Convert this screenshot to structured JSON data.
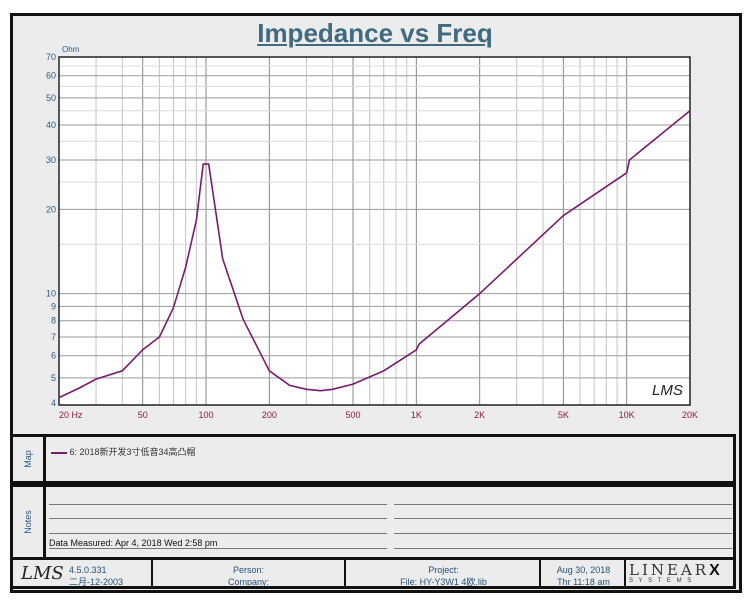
{
  "chart_data": {
    "type": "line",
    "title": "Impedance vs Freq",
    "ylabel": "Ohm",
    "xlabel": "",
    "xscale": "log",
    "yscale": "log",
    "xlim": [
      20,
      20000
    ],
    "ylim": [
      4,
      70
    ],
    "xticks": [
      {
        "v": 20,
        "l": "20  Hz"
      },
      {
        "v": 50,
        "l": "50"
      },
      {
        "v": 100,
        "l": "100"
      },
      {
        "v": 200,
        "l": "200"
      },
      {
        "v": 500,
        "l": "500"
      },
      {
        "v": 1000,
        "l": "1K"
      },
      {
        "v": 2000,
        "l": "2K"
      },
      {
        "v": 5000,
        "l": "5K"
      },
      {
        "v": 10000,
        "l": "10K"
      },
      {
        "v": 20000,
        "l": "20K"
      }
    ],
    "yticks": [
      4,
      5,
      6,
      7,
      8,
      9,
      10,
      20,
      30,
      40,
      50,
      60,
      70
    ],
    "grid": true,
    "series": [
      {
        "name": "6: 2018新开发3寸低音34高凸帽",
        "color": "#7a1a6e",
        "x": [
          20,
          25,
          30,
          40,
          50,
          60,
          70,
          80,
          90,
          97,
          103,
          110,
          120,
          150,
          200,
          250,
          300,
          350,
          400,
          500,
          700,
          1000,
          1030,
          2000,
          5000,
          10000,
          10300,
          20000
        ],
        "y": [
          4.25,
          4.6,
          4.95,
          5.3,
          6.3,
          7.0,
          8.9,
          12.4,
          18.3,
          29,
          29,
          20.8,
          13.3,
          8.1,
          5.3,
          4.7,
          4.55,
          4.5,
          4.55,
          4.75,
          5.3,
          6.3,
          6.6,
          10,
          19,
          27,
          30,
          45
        ]
      }
    ]
  },
  "watermark": "LMS",
  "map": {
    "label": "Map",
    "legend": "6: 2018新开发3寸低音34高凸帽"
  },
  "notes": {
    "label": "Notes",
    "measured": "Data Measured: Apr  4, 2018  Wed  2:58 pm"
  },
  "footer": {
    "logo": "LMS",
    "version": "4.5.0.331",
    "build_date": "二月-12-2003",
    "person": "Person:",
    "company": "Company:",
    "project": "Project:",
    "file": "File: HY-Y3W1 4欧.lib",
    "date": "Aug 30, 2018",
    "time": "Thr 11:18 am",
    "brand": "LINEAR",
    "brand_x": "X",
    "brand_sub": "S Y S T E M S"
  }
}
